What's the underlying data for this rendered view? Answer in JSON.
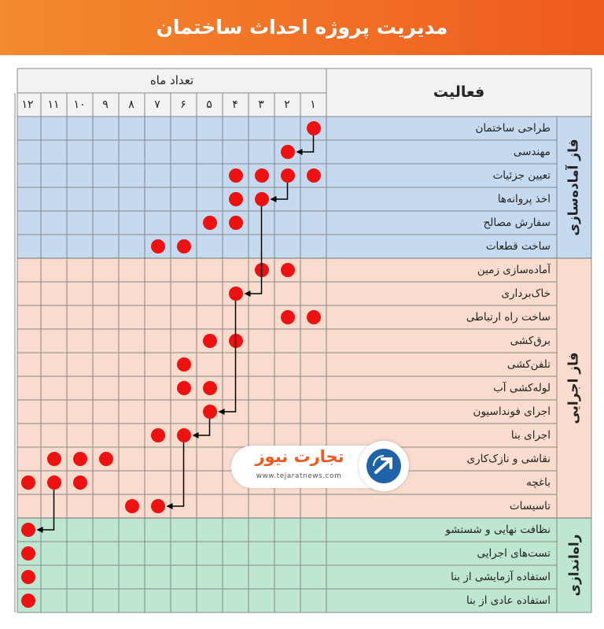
{
  "title": "مدیریت پروژه احداث ساختمان",
  "header": {
    "activity": "فعالیت",
    "months_label": "تعداد ماه"
  },
  "months": [
    "۱",
    "۲",
    "۳",
    "۴",
    "۵",
    "۶",
    "۷",
    "۸",
    "۹",
    "۱۰",
    "۱۱",
    "۱۲"
  ],
  "phases": [
    {
      "name": "فاز آماده‌سازی",
      "color": "#c5d9ef",
      "rows": [
        0,
        5
      ]
    },
    {
      "name": "فاز اجرایی",
      "color": "#f9dccd",
      "rows": [
        6,
        16
      ]
    },
    {
      "name": "راه‌اندازی",
      "color": "#bfe6d1",
      "rows": [
        17,
        20
      ]
    }
  ],
  "activities": [
    {
      "name": "طراحی ساختمان",
      "months": [
        1
      ]
    },
    {
      "name": "مهندسی",
      "months": [
        2
      ]
    },
    {
      "name": "تعیین جزئیات",
      "months": [
        1,
        2,
        3,
        4
      ]
    },
    {
      "name": "اخذ پروانه‌ها",
      "months": [
        3,
        4
      ]
    },
    {
      "name": "سفارش مصالح",
      "months": [
        4,
        5
      ]
    },
    {
      "name": "ساخت قطعات",
      "months": [
        6,
        7
      ]
    },
    {
      "name": "آماده‌سازی زمین",
      "months": [
        2,
        3
      ]
    },
    {
      "name": "خاک‌برداری",
      "months": [
        4
      ]
    },
    {
      "name": "ساخت راه ارتباطی",
      "months": [
        1,
        2
      ]
    },
    {
      "name": "برق‌کشی",
      "months": [
        4,
        5
      ]
    },
    {
      "name": "تلفن‌کشی",
      "months": [
        6
      ]
    },
    {
      "name": "لوله‌کشی آب",
      "months": [
        5,
        6
      ]
    },
    {
      "name": "اجرای فونداسیون",
      "months": [
        5
      ]
    },
    {
      "name": "اجرای بنا",
      "months": [
        6,
        7
      ]
    },
    {
      "name": "نقاشی و نازک‌کاری",
      "months": [
        9,
        10,
        11
      ]
    },
    {
      "name": "باغچه",
      "months": [
        10,
        11,
        12
      ]
    },
    {
      "name": "تاسیسات",
      "months": [
        7,
        8
      ]
    },
    {
      "name": "نظافت نهایی و شستشو",
      "months": [
        12
      ]
    },
    {
      "name": "تست‌های اجرایی",
      "months": [
        12
      ]
    },
    {
      "name": "استفاده آزمایشی از بنا",
      "months": [
        12
      ]
    },
    {
      "name": "استفاده عادی از بنا",
      "months": [
        12
      ]
    }
  ],
  "dependencies": [
    {
      "from_row": 0,
      "from_month": 1,
      "to_row": 1,
      "to_month": 2
    },
    {
      "from_row": 2,
      "from_month": 2,
      "to_row": 3,
      "to_month": 3
    },
    {
      "from_row": 3,
      "from_month": 3,
      "to_row": 7,
      "to_month": 4
    },
    {
      "from_row": 7,
      "from_month": 4,
      "to_row": 12,
      "to_month": 5
    },
    {
      "from_row": 12,
      "from_month": 5,
      "to_row": 13,
      "to_month": 6
    },
    {
      "from_row": 13,
      "from_month": 6,
      "to_row": 16,
      "to_month": 7
    },
    {
      "from_row": 15,
      "from_month": 11,
      "to_row": 17,
      "to_month": 12
    }
  ],
  "logo": {
    "name": "تجارت نیوز",
    "url": "www.tejaratnews.com"
  },
  "colors": {
    "dot": "#ee1111",
    "header_start": "#f28a2e",
    "header_end": "#f05a1e",
    "grid": "#888888"
  }
}
